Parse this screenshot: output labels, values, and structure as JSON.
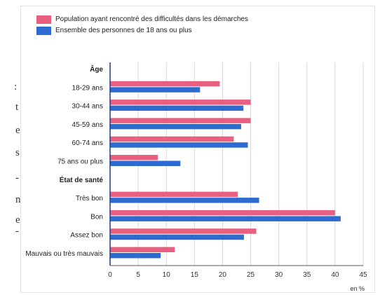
{
  "chart_data": {
    "type": "bar",
    "orientation": "horizontal",
    "categories": [
      {
        "label": "Âge",
        "header": true
      },
      {
        "label": "18-29 ans"
      },
      {
        "label": "30-44 ans"
      },
      {
        "label": "45-59 ans"
      },
      {
        "label": "60-74 ans"
      },
      {
        "label": "75 ans ou plus"
      },
      {
        "label": "État de santé",
        "header": true
      },
      {
        "label": "Très bon"
      },
      {
        "label": "Bon"
      },
      {
        "label": "Assez bon"
      },
      {
        "label": "Mauvais ou très mauvais"
      }
    ],
    "series": [
      {
        "name": "Population ayant rencontré des difficultés dans les démarches",
        "color": "#e8607f",
        "values": [
          null,
          19.5,
          25,
          25,
          22,
          8.5,
          null,
          22.7,
          40,
          26,
          11.5
        ]
      },
      {
        "name": "Ensemble des personnes de 18 ans ou plus",
        "color": "#2e6bd0",
        "values": [
          null,
          16,
          23.7,
          23.3,
          24.5,
          12.5,
          null,
          26.5,
          41,
          23.8,
          9
        ]
      }
    ],
    "xlim": [
      0,
      45
    ],
    "xticks": [
      "0",
      "5",
      "10",
      "15",
      "20",
      "25",
      "30",
      "35",
      "40",
      "45"
    ],
    "xunit": "en %",
    "grid": true,
    "legend_position": "top-left"
  },
  "cut_text": [
    ":",
    "t",
    "e",
    "s",
    "-",
    "n",
    "e",
    "-"
  ]
}
